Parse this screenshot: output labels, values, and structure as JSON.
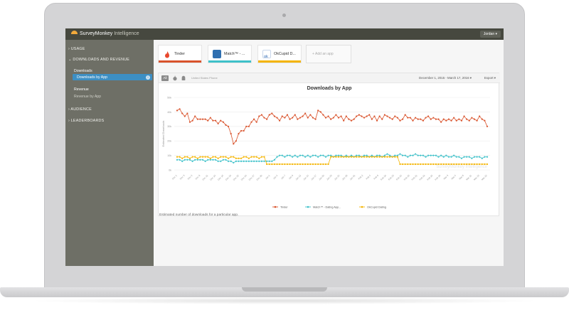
{
  "header": {
    "brand_main": "SurveyMonkey",
    "brand_sub": " Intelligence",
    "user_menu": "Jordan ▾"
  },
  "sidebar": {
    "usage": "USAGE",
    "downloads_revenue": "DOWNLOADS AND REVENUE",
    "downloads_heading": "Downloads",
    "downloads_by_app": "Downloads by App",
    "revenue_heading": "Revenue",
    "revenue_by_app": "Revenue by App",
    "audience": "AUDIENCE",
    "leaderboards": "LEADERBOARDS"
  },
  "apps": [
    {
      "name": "Tinder",
      "color": "#d9532c",
      "icon": "flame-icon"
    },
    {
      "name": "Match™ - ...",
      "color": "#3ec1c9",
      "icon": "match-icon"
    },
    {
      "name": "OkCupid D...",
      "color": "#f4b400",
      "icon": "okcupid-icon"
    }
  ],
  "add_app_label": "+ Add an app",
  "filters": {
    "all": "All",
    "device": "United States Phone",
    "date_range": "December 1, 2015 - March 17, 2016 ▾",
    "export": "Export ▾"
  },
  "chart_data": {
    "type": "line",
    "title": "Downloads by App",
    "ylabel": "Estimated Downloads",
    "yticks": [
      "0k",
      "10k",
      "20k",
      "30k",
      "40k",
      "50k"
    ],
    "ylim": [
      0,
      50
    ],
    "watermark": "SurveyMonkey Intelligence",
    "series": [
      {
        "name": "Tinder",
        "color": "#d9532c",
        "values": [
          41,
          42,
          39,
          37,
          39,
          33,
          34,
          37,
          35,
          35,
          35,
          35,
          34,
          36,
          34,
          34,
          32,
          34,
          33,
          31,
          30,
          25,
          18,
          20,
          25,
          27,
          27,
          30,
          30,
          33,
          35,
          33,
          37,
          38,
          36,
          35,
          38,
          39,
          37,
          36,
          34,
          37,
          36,
          38,
          35,
          36,
          38,
          35,
          36,
          37,
          39,
          36,
          38,
          36,
          35,
          41,
          40,
          38,
          36,
          37,
          35,
          36,
          38,
          36,
          37,
          34,
          37,
          35,
          34,
          35,
          37,
          38,
          37,
          36,
          37,
          38,
          35,
          37,
          34,
          37,
          35,
          38,
          37,
          36,
          35,
          37,
          36,
          34,
          35,
          38,
          36,
          36,
          34,
          36,
          35,
          35,
          34,
          36,
          37,
          35,
          36,
          35,
          35,
          33,
          35,
          34,
          35,
          34,
          36,
          34,
          35,
          34,
          37,
          35,
          34,
          36,
          35,
          34,
          37,
          35,
          34,
          30
        ]
      },
      {
        "name": "Match™ - Dating App...",
        "color": "#3ec1c9",
        "values": [
          7,
          7,
          6,
          7,
          7,
          7,
          6,
          7,
          7,
          7,
          7,
          6,
          7,
          7,
          7,
          7,
          6,
          6,
          7,
          7,
          6,
          6,
          5,
          6,
          6,
          6,
          6,
          6,
          6,
          6,
          6,
          6,
          6,
          6,
          6,
          6,
          6,
          6,
          7,
          9,
          10,
          10,
          9,
          10,
          10,
          9,
          10,
          9,
          10,
          10,
          9,
          10,
          9,
          10,
          10,
          9,
          10,
          10,
          9,
          10,
          10,
          9,
          10,
          10,
          10,
          9,
          10,
          9,
          10,
          9,
          10,
          10,
          9,
          10,
          10,
          9,
          10,
          9,
          10,
          10,
          9,
          10,
          11,
          10,
          9,
          10,
          10,
          11,
          10,
          10,
          9,
          10,
          10,
          11,
          10,
          10,
          10,
          9,
          10,
          10,
          10,
          10,
          9,
          10,
          9,
          10,
          9,
          9,
          10,
          9,
          9,
          8,
          9,
          9,
          9,
          8,
          9,
          9,
          9,
          8,
          9,
          9
        ]
      },
      {
        "name": "OkCupid Dating",
        "color": "#f4b400",
        "values": [
          9,
          9,
          8,
          9,
          9,
          8,
          9,
          9,
          8,
          9,
          9,
          9,
          9,
          8,
          9,
          9,
          8,
          9,
          9,
          9,
          8,
          9,
          9,
          8,
          8,
          8,
          9,
          9,
          8,
          9,
          9,
          9,
          8,
          9,
          9,
          4,
          4,
          4,
          4,
          4,
          4,
          4,
          4,
          4,
          4,
          4,
          4,
          4,
          4,
          4,
          4,
          4,
          4,
          4,
          4,
          4,
          4,
          4,
          4,
          4,
          9,
          9,
          9,
          9,
          9,
          9,
          9,
          9,
          9,
          9,
          9,
          9,
          9,
          9,
          9,
          9,
          9,
          9,
          9,
          9,
          9,
          9,
          9,
          9,
          9,
          9,
          9,
          4,
          4,
          4,
          4,
          4,
          4,
          4,
          4,
          4,
          4,
          4,
          4,
          4,
          4,
          4,
          4,
          4,
          4,
          4,
          4,
          4,
          4,
          4,
          4,
          4,
          4,
          4,
          4,
          4,
          4,
          4,
          4,
          4,
          4,
          4
        ]
      }
    ],
    "xticks": [
      "Dec 1",
      "Dec 3",
      "Dec 6",
      "Dec 8",
      "Dec 11",
      "Dec 14",
      "Dec 16",
      "Dec 19",
      "Dec 22",
      "Dec 24",
      "Dec 27",
      "Dec 30",
      "Jan 1",
      "Jan 4",
      "Jan 7",
      "Jan 9",
      "Jan 12",
      "Jan 15",
      "Jan 17",
      "Jan 20",
      "Jan 23",
      "Jan 25",
      "Jan 28",
      "Jan 31",
      "Feb 2",
      "Feb 5",
      "Feb 8",
      "Feb 10",
      "Feb 13",
      "Feb 16",
      "Feb 18",
      "Feb 21",
      "Feb 24",
      "Feb 26",
      "Feb 29",
      "Mar 3",
      "Mar 5",
      "Mar 8",
      "Mar 11",
      "Mar 13",
      "Mar 16"
    ]
  },
  "footnote": "Estimated number of downloads for a particular app."
}
